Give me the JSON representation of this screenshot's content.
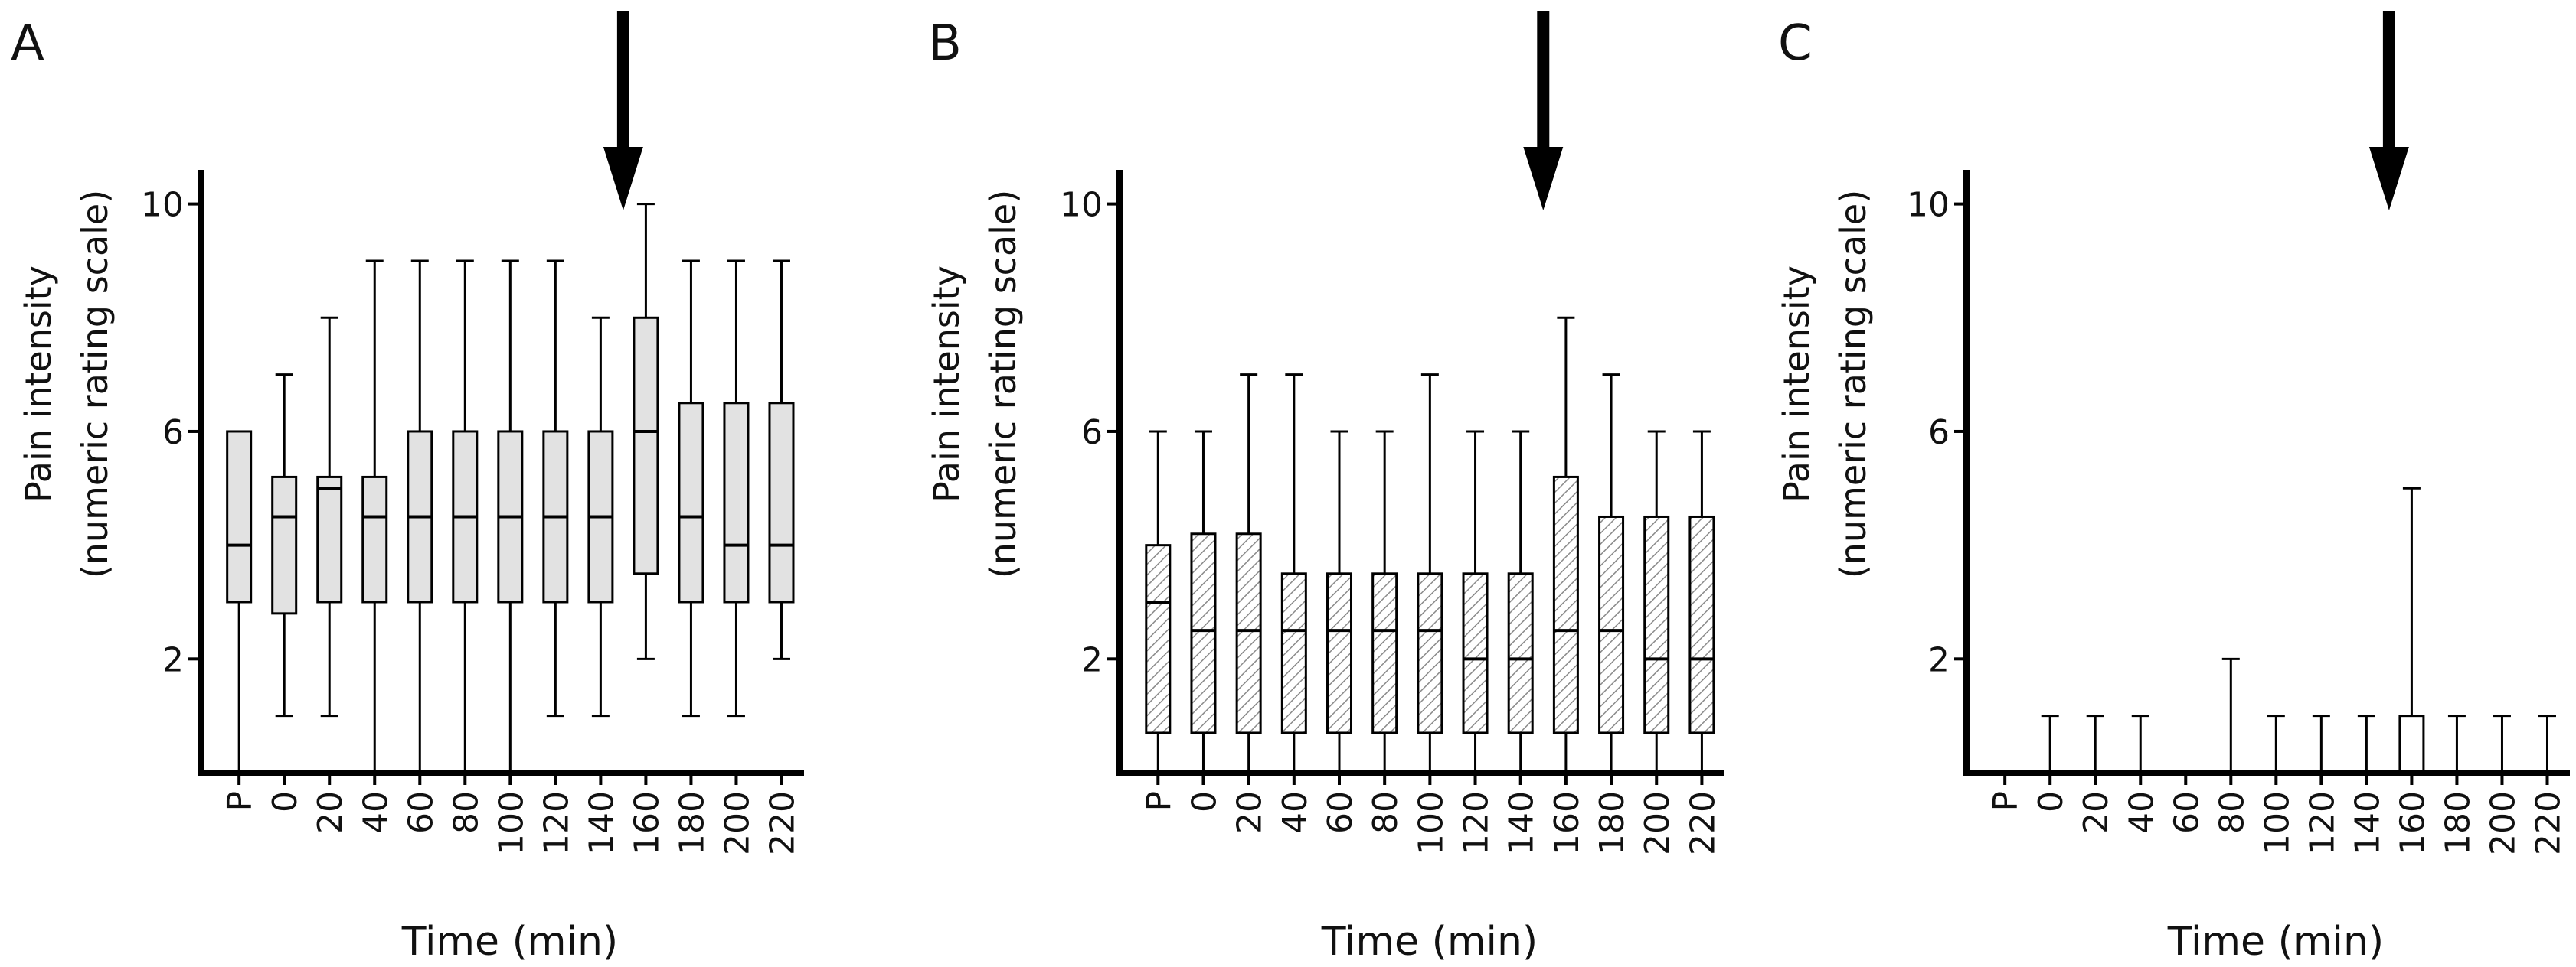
{
  "chart_data": [
    {
      "panel_label": "A",
      "type": "box",
      "ylabel_line1": "Pain intensity",
      "ylabel_line2": "(numeric rating scale)",
      "xlabel": "Time (min)",
      "ylim": [
        0,
        10.6
      ],
      "yticks": [
        2,
        6,
        10
      ],
      "categories": [
        "P",
        "0",
        "20",
        "40",
        "60",
        "80",
        "100",
        "120",
        "140",
        "160",
        "180",
        "200",
        "220"
      ],
      "arrow_at": "160",
      "box_fill": "#e2e2e2",
      "box_pattern": "solid",
      "boxes": [
        {
          "min": 0,
          "q1": 3,
          "median": 4,
          "q3": 6,
          "max": 6
        },
        {
          "min": 1,
          "q1": 2.8,
          "median": 4.5,
          "q3": 5.2,
          "max": 7
        },
        {
          "min": 1,
          "q1": 3,
          "median": 5,
          "q3": 5.2,
          "max": 8
        },
        {
          "min": 0,
          "q1": 3,
          "median": 4.5,
          "q3": 5.2,
          "max": 9
        },
        {
          "min": 0,
          "q1": 3,
          "median": 4.5,
          "q3": 6,
          "max": 9
        },
        {
          "min": 0,
          "q1": 3,
          "median": 4.5,
          "q3": 6,
          "max": 9
        },
        {
          "min": 0,
          "q1": 3,
          "median": 4.5,
          "q3": 6,
          "max": 9
        },
        {
          "min": 1,
          "q1": 3,
          "median": 4.5,
          "q3": 6,
          "max": 9
        },
        {
          "min": 1,
          "q1": 3,
          "median": 4.5,
          "q3": 6,
          "max": 8
        },
        {
          "min": 2,
          "q1": 3.5,
          "median": 6,
          "q3": 8,
          "max": 10
        },
        {
          "min": 1,
          "q1": 3,
          "median": 4.5,
          "q3": 6.5,
          "max": 9
        },
        {
          "min": 1,
          "q1": 3,
          "median": 4,
          "q3": 6.5,
          "max": 9
        },
        {
          "min": 2,
          "q1": 3,
          "median": 4,
          "q3": 6.5,
          "max": 9
        }
      ]
    },
    {
      "panel_label": "B",
      "type": "box",
      "ylabel_line1": "Pain intensity",
      "ylabel_line2": "(numeric rating scale)",
      "xlabel": "Time (min)",
      "ylim": [
        0,
        10.6
      ],
      "yticks": [
        2,
        6,
        10
      ],
      "categories": [
        "P",
        "0",
        "20",
        "40",
        "60",
        "80",
        "100",
        "120",
        "140",
        "160",
        "180",
        "200",
        "220"
      ],
      "arrow_at": "160",
      "box_fill": "#ffffff",
      "box_pattern": "hatched",
      "boxes": [
        {
          "min": 0,
          "q1": 0.7,
          "median": 3,
          "q3": 4,
          "max": 6
        },
        {
          "min": 0,
          "q1": 0.7,
          "median": 2.5,
          "q3": 4.2,
          "max": 6
        },
        {
          "min": 0,
          "q1": 0.7,
          "median": 2.5,
          "q3": 4.2,
          "max": 7
        },
        {
          "min": 0,
          "q1": 0.7,
          "median": 2.5,
          "q3": 3.5,
          "max": 7
        },
        {
          "min": 0,
          "q1": 0.7,
          "median": 2.5,
          "q3": 3.5,
          "max": 6
        },
        {
          "min": 0,
          "q1": 0.7,
          "median": 2.5,
          "q3": 3.5,
          "max": 6
        },
        {
          "min": 0,
          "q1": 0.7,
          "median": 2.5,
          "q3": 3.5,
          "max": 7
        },
        {
          "min": 0,
          "q1": 0.7,
          "median": 2,
          "q3": 3.5,
          "max": 6
        },
        {
          "min": 0,
          "q1": 0.7,
          "median": 2,
          "q3": 3.5,
          "max": 6
        },
        {
          "min": 0,
          "q1": 0.7,
          "median": 2.5,
          "q3": 5.2,
          "max": 8
        },
        {
          "min": 0,
          "q1": 0.7,
          "median": 2.5,
          "q3": 4.5,
          "max": 7
        },
        {
          "min": 0,
          "q1": 0.7,
          "median": 2,
          "q3": 4.5,
          "max": 6
        },
        {
          "min": 0,
          "q1": 0.7,
          "median": 2,
          "q3": 4.5,
          "max": 6
        }
      ]
    },
    {
      "panel_label": "C",
      "type": "box",
      "ylabel_line1": "Pain intensity",
      "ylabel_line2": "(numeric rating scale)",
      "xlabel": "Time (min)",
      "ylim": [
        0,
        10.6
      ],
      "yticks": [
        2,
        6,
        10
      ],
      "categories": [
        "P",
        "0",
        "20",
        "40",
        "60",
        "80",
        "100",
        "120",
        "140",
        "160",
        "180",
        "200",
        "220"
      ],
      "arrow_at": "160",
      "box_fill": "#ffffff",
      "box_pattern": "solid",
      "boxes": [
        {
          "min": 0,
          "q1": 0,
          "median": 0,
          "q3": 0,
          "max": 0
        },
        {
          "min": 0,
          "q1": 0,
          "median": 0,
          "q3": 0,
          "max": 1
        },
        {
          "min": 0,
          "q1": 0,
          "median": 0,
          "q3": 0,
          "max": 1
        },
        {
          "min": 0,
          "q1": 0,
          "median": 0,
          "q3": 0,
          "max": 1
        },
        {
          "min": 0,
          "q1": 0,
          "median": 0,
          "q3": 0,
          "max": 0
        },
        {
          "min": 0,
          "q1": 0,
          "median": 0,
          "q3": 0,
          "max": 2
        },
        {
          "min": 0,
          "q1": 0,
          "median": 0,
          "q3": 0,
          "max": 1
        },
        {
          "min": 0,
          "q1": 0,
          "median": 0,
          "q3": 0,
          "max": 1
        },
        {
          "min": 0,
          "q1": 0,
          "median": 0,
          "q3": 0,
          "max": 1
        },
        {
          "min": 0,
          "q1": 0,
          "median": 0,
          "q3": 1,
          "max": 5
        },
        {
          "min": 0,
          "q1": 0,
          "median": 0,
          "q3": 0,
          "max": 1
        },
        {
          "min": 0,
          "q1": 0,
          "median": 0,
          "q3": 0,
          "max": 1
        },
        {
          "min": 0,
          "q1": 0,
          "median": 0,
          "q3": 0,
          "max": 1
        }
      ]
    }
  ]
}
